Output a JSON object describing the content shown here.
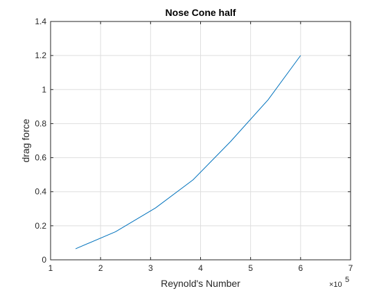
{
  "chart_data": {
    "type": "line",
    "title": "Nose Cone half",
    "xlabel": "Reynold's Number",
    "ylabel": "drag force",
    "x_exponent_base": "×10",
    "x_exponent_power": "5",
    "xlim": [
      1,
      7
    ],
    "ylim": [
      0,
      1.4
    ],
    "xticks": [
      "1",
      "2",
      "3",
      "4",
      "5",
      "6",
      "7"
    ],
    "yticks": [
      "0",
      "0.2",
      "0.4",
      "0.6",
      "0.8",
      "1",
      "1.2",
      "1.4"
    ],
    "grid": true,
    "series": [
      {
        "x": [
          150000,
          230000,
          310000,
          385000,
          460000,
          535000,
          600000
        ],
        "y": [
          0.065,
          0.165,
          0.305,
          0.47,
          0.695,
          0.94,
          1.2
        ]
      }
    ],
    "line_color": "#0072BD",
    "grid_color": "#dedede",
    "axis_color": "#262626"
  }
}
